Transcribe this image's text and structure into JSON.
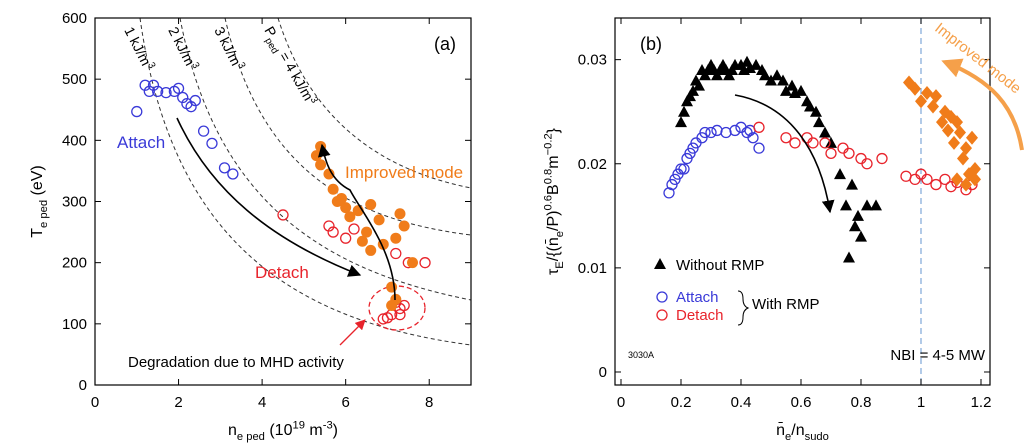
{
  "chart_data": [
    {
      "type": "scatter",
      "xlabel": {
        "parts": [
          {
            "text": "n"
          },
          {
            "text": "e ped",
            "sub": true
          },
          {
            "text": " (10"
          },
          {
            "text": "19",
            "sup": true
          },
          {
            "text": " m"
          },
          {
            "text": "-3",
            "sup": true
          },
          {
            "text": ")"
          }
        ]
      },
      "ylabel": {
        "parts": [
          {
            "text": "T"
          },
          {
            "text": "e ped",
            "sub": true
          },
          {
            "text": " (eV)"
          }
        ]
      },
      "xlim": [
        0,
        9
      ],
      "xticks": [
        0,
        2,
        4,
        6,
        8
      ],
      "ylim": [
        0,
        600
      ],
      "yticks": [
        0,
        100,
        200,
        300,
        400,
        500,
        600
      ],
      "series": [
        {
          "name": "Attach",
          "color": "#3a3ad8",
          "marker": "circle-open",
          "x": [
            1.0,
            1.2,
            1.3,
            1.4,
            1.5,
            1.7,
            1.9,
            2.0,
            2.1,
            2.2,
            2.3,
            2.4,
            2.6,
            2.8,
            3.1,
            3.3
          ],
          "values": [
            447,
            490,
            480,
            490,
            480,
            478,
            480,
            485,
            470,
            460,
            455,
            465,
            415,
            395,
            355,
            345
          ]
        },
        {
          "name": "Detach",
          "color": "#e8242c",
          "marker": "circle-open",
          "x": [
            4.5,
            5.6,
            5.7,
            6.0,
            6.2,
            7.2,
            7.5,
            7.9,
            6.9,
            7.0,
            7.1,
            7.3,
            7.3,
            7.4,
            7.2
          ],
          "values": [
            278,
            260,
            250,
            240,
            255,
            215,
            200,
            200,
            108,
            110,
            115,
            125,
            115,
            130,
            135
          ]
        },
        {
          "name": "Improved mode",
          "color": "#f07c1a",
          "marker": "circle-filled",
          "x": [
            5.3,
            5.4,
            5.4,
            5.6,
            5.7,
            5.8,
            5.9,
            6.0,
            6.1,
            6.3,
            6.4,
            6.5,
            6.6,
            6.6,
            6.8,
            6.9,
            7.1,
            7.1,
            7.2,
            7.2,
            7.3,
            7.4,
            7.6
          ],
          "values": [
            375,
            390,
            360,
            345,
            320,
            300,
            305,
            290,
            275,
            285,
            235,
            250,
            295,
            220,
            270,
            230,
            160,
            130,
            140,
            240,
            280,
            260,
            200
          ]
        }
      ],
      "annotations": [
        {
          "parts": [
            {
              "text": "(a)"
            }
          ]
        },
        {
          "parts": [
            {
              "text": "Degradation due to MHD activity"
            }
          ]
        },
        {
          "parts": [
            {
              "text": "1 kJ/m"
            },
            {
              "text": "3",
              "sup": true
            }
          ]
        },
        {
          "parts": [
            {
              "text": "2 kJ/m"
            },
            {
              "text": "3",
              "sup": true
            }
          ]
        },
        {
          "parts": [
            {
              "text": "3 kJ/m"
            },
            {
              "text": "3",
              "sup": true
            }
          ]
        },
        {
          "parts": [
            {
              "text": "P"
            },
            {
              "text": "ped",
              "sub": true
            },
            {
              "text": " = 4 kJ/m"
            },
            {
              "text": "3",
              "sup": true
            }
          ]
        }
      ]
    },
    {
      "type": "scatter",
      "xlabel": {
        "parts": [
          {
            "text": "n̄"
          },
          {
            "text": "e",
            "sub": true
          },
          {
            "text": "/n"
          },
          {
            "text": "sudo",
            "sub": true
          }
        ]
      },
      "ylabel": {
        "parts": [
          {
            "text": "τ"
          },
          {
            "text": "E",
            "sub": true
          },
          {
            "text": "/{("
          },
          {
            "text": "n̄"
          },
          {
            "text": "e",
            "sub": true
          },
          {
            "text": "/P)"
          },
          {
            "text": "0.6",
            "sup": true
          },
          {
            "text": "B"
          },
          {
            "text": "0.8",
            "sup": true
          },
          {
            "text": "m"
          },
          {
            "text": "−0.2",
            "sup": true
          },
          {
            "text": "}"
          }
        ]
      },
      "xlim": [
        -0.02,
        1.23
      ],
      "xticks": [
        0,
        0.2,
        0.4,
        0.6,
        0.8,
        1,
        1.2
      ],
      "ylim": [
        -0.00125,
        0.034
      ],
      "yticks": [
        0,
        0.01,
        0.02,
        0.03
      ],
      "reference_x": 1,
      "series": [
        {
          "name": "Without RMP",
          "color": "#000000",
          "marker": "triangle",
          "x": [
            0.2,
            0.21,
            0.22,
            0.23,
            0.24,
            0.25,
            0.26,
            0.27,
            0.28,
            0.29,
            0.3,
            0.31,
            0.32,
            0.33,
            0.34,
            0.35,
            0.36,
            0.37,
            0.38,
            0.4,
            0.41,
            0.42,
            0.43,
            0.45,
            0.47,
            0.48,
            0.5,
            0.52,
            0.54,
            0.55,
            0.57,
            0.58,
            0.6,
            0.62,
            0.63,
            0.65,
            0.66,
            0.68,
            0.7,
            0.73,
            0.75,
            0.77,
            0.78,
            0.76,
            0.8,
            0.82,
            0.85,
            0.79
          ],
          "values": [
            0.024,
            0.025,
            0.026,
            0.0265,
            0.027,
            0.028,
            0.0275,
            0.029,
            0.0285,
            0.029,
            0.0295,
            0.029,
            0.0285,
            0.029,
            0.0295,
            0.029,
            0.0285,
            0.029,
            0.0295,
            0.0295,
            0.029,
            0.0298,
            0.0292,
            0.0295,
            0.029,
            0.0285,
            0.028,
            0.0285,
            0.028,
            0.027,
            0.0275,
            0.0268,
            0.027,
            0.026,
            0.0255,
            0.025,
            0.024,
            0.023,
            0.022,
            0.019,
            0.016,
            0.018,
            0.014,
            0.011,
            0.013,
            0.016,
            0.016,
            0.015
          ]
        },
        {
          "name": "Attach",
          "color": "#3a3ad8",
          "marker": "circle-open",
          "x": [
            0.16,
            0.17,
            0.18,
            0.19,
            0.2,
            0.21,
            0.22,
            0.23,
            0.24,
            0.25,
            0.27,
            0.28,
            0.3,
            0.32,
            0.35,
            0.38,
            0.4,
            0.42,
            0.43,
            0.44,
            0.46
          ],
          "values": [
            0.0172,
            0.018,
            0.0185,
            0.019,
            0.0195,
            0.0195,
            0.0205,
            0.021,
            0.0215,
            0.022,
            0.0225,
            0.023,
            0.023,
            0.0232,
            0.023,
            0.0232,
            0.0235,
            0.023,
            0.0232,
            0.0225,
            0.0215
          ]
        },
        {
          "name": "Detach",
          "color": "#e8242c",
          "marker": "circle-open",
          "x": [
            0.46,
            0.55,
            0.58,
            0.62,
            0.64,
            0.68,
            0.7,
            0.74,
            0.76,
            0.8,
            0.82,
            0.87,
            0.95,
            0.98,
            1.0,
            1.02,
            1.05,
            1.08,
            1.1,
            1.12,
            1.15,
            1.17
          ],
          "values": [
            0.0235,
            0.0225,
            0.022,
            0.0225,
            0.022,
            0.022,
            0.021,
            0.0215,
            0.021,
            0.0205,
            0.02,
            0.0205,
            0.0188,
            0.0185,
            0.019,
            0.0185,
            0.018,
            0.0185,
            0.0178,
            0.0182,
            0.0175,
            0.018
          ]
        },
        {
          "name": "Improved mode",
          "color": "#f07c1a",
          "marker": "diamond",
          "x": [
            0.96,
            0.98,
            1.02,
            1.0,
            1.05,
            1.04,
            1.08,
            1.07,
            1.1,
            1.12,
            1.09,
            1.13,
            1.11,
            1.15,
            1.14,
            1.17,
            1.16,
            1.18,
            1.12,
            1.15,
            1.18
          ],
          "values": [
            0.0278,
            0.0272,
            0.0268,
            0.026,
            0.0265,
            0.0255,
            0.025,
            0.024,
            0.0245,
            0.024,
            0.0232,
            0.023,
            0.022,
            0.0215,
            0.0205,
            0.0225,
            0.019,
            0.0195,
            0.0185,
            0.018,
            0.0185
          ]
        }
      ],
      "annotations": [
        {
          "parts": [
            {
              "text": "(b)"
            }
          ]
        },
        {
          "parts": [
            {
              "text": "With RMP"
            }
          ]
        },
        {
          "parts": [
            {
              "text": "3030A"
            }
          ]
        },
        {
          "parts": [
            {
              "text": "NBI = 4-5 MW"
            }
          ]
        }
      ]
    }
  ]
}
